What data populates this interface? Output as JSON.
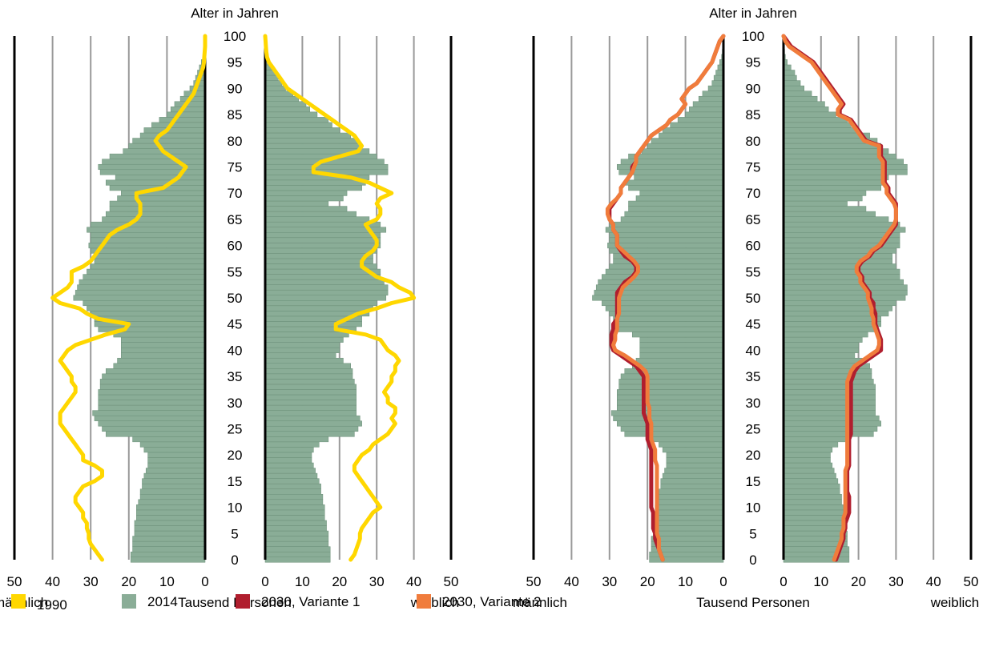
{
  "chart_data": [
    {
      "type": "bar",
      "subtype": "population-pyramid",
      "title": "Alter in Jahren",
      "xlabel": "Tausend Personen",
      "left_label": "männlich",
      "right_label": "weiblich",
      "xlim": [
        0,
        50
      ],
      "ylim": [
        0,
        100
      ],
      "x_ticks": [
        "50",
        "40",
        "30",
        "20",
        "10",
        "0"
      ],
      "x_ticks_right": [
        "0",
        "10",
        "20",
        "30",
        "40",
        "50"
      ],
      "y_ticks": [
        "0",
        "5",
        "10",
        "15",
        "20",
        "25",
        "30",
        "35",
        "40",
        "45",
        "50",
        "55",
        "60",
        "65",
        "70",
        "75",
        "80",
        "85",
        "90",
        "95",
        "100"
      ],
      "grid": true,
      "ages": [
        0,
        1,
        2,
        3,
        4,
        5,
        6,
        7,
        8,
        9,
        10,
        11,
        12,
        13,
        14,
        15,
        16,
        17,
        18,
        19,
        20,
        21,
        22,
        23,
        24,
        25,
        26,
        27,
        28,
        29,
        30,
        31,
        32,
        33,
        34,
        35,
        36,
        37,
        38,
        39,
        40,
        41,
        42,
        43,
        44,
        45,
        46,
        47,
        48,
        49,
        50,
        51,
        52,
        53,
        54,
        55,
        56,
        57,
        58,
        59,
        60,
        61,
        62,
        63,
        64,
        65,
        66,
        67,
        68,
        69,
        70,
        71,
        72,
        73,
        74,
        75,
        76,
        77,
        78,
        79,
        80,
        81,
        82,
        83,
        84,
        85,
        86,
        87,
        88,
        89,
        90,
        91,
        92,
        93,
        94,
        95,
        96,
        97,
        98,
        99,
        100
      ],
      "series": [
        {
          "name": "2014",
          "kind": "bars",
          "color": "#8aad97",
          "male": [
            19.5,
            19.5,
            19,
            19,
            19,
            18.5,
            18.5,
            18.5,
            18,
            18,
            18,
            17.5,
            17,
            17,
            16.5,
            16.5,
            16,
            15.5,
            15,
            15,
            15,
            16,
            17,
            19,
            26,
            27,
            28,
            29,
            29.5,
            28,
            28,
            28,
            28,
            27.5,
            27.5,
            27,
            26,
            24,
            23,
            22,
            22,
            22,
            22,
            24,
            28,
            29,
            29,
            30,
            31,
            32,
            34.5,
            34,
            33.5,
            33,
            32,
            31,
            30,
            29,
            29,
            30,
            30.5,
            30,
            30,
            31,
            30,
            27,
            26,
            25,
            25,
            23,
            22,
            25,
            26,
            23.5,
            27.5,
            28,
            27,
            25,
            21.5,
            20,
            19,
            17,
            16,
            14,
            12,
            10,
            9,
            8,
            6.5,
            5.5,
            4,
            3,
            2.5,
            2,
            1.5,
            1,
            0.5,
            0.3,
            0.2,
            0.1,
            0
          ],
          "female": [
            17.5,
            17.5,
            17.5,
            17,
            17,
            17,
            16.5,
            16.5,
            16,
            16,
            16,
            15.5,
            15.5,
            15,
            15,
            14.5,
            14,
            13.5,
            13,
            12.5,
            12.5,
            13,
            14.5,
            17,
            24,
            25,
            26,
            25.5,
            24.5,
            24.5,
            24.5,
            24.5,
            24.5,
            24.5,
            24,
            23.5,
            23.5,
            23,
            21,
            19,
            20,
            20,
            21,
            22.5,
            24.5,
            26,
            26,
            28,
            29,
            30,
            32.5,
            33,
            33,
            32,
            31,
            31,
            30,
            29,
            29,
            30,
            31,
            31,
            31,
            32.5,
            31,
            28,
            24.5,
            22,
            17,
            21,
            22,
            26,
            27,
            28,
            33,
            33,
            32,
            30,
            28,
            26,
            25,
            23,
            20,
            18,
            17,
            14,
            12,
            11,
            9,
            7.5,
            5.5,
            4.5,
            3.5,
            3,
            2,
            1,
            0.5,
            0.3,
            0.2,
            0.1,
            0
          ]
        },
        {
          "name": "1990",
          "kind": "line",
          "color": "#ffd700",
          "male": [
            27,
            28,
            29,
            30,
            30.5,
            30.5,
            31,
            31,
            32,
            32,
            33,
            34,
            34,
            33,
            32,
            29,
            27,
            27,
            29,
            32,
            32,
            33,
            34,
            35,
            36,
            37,
            38,
            38,
            38,
            37,
            36,
            35,
            34,
            34,
            35,
            35,
            36,
            37,
            38,
            37,
            36,
            34,
            30,
            26,
            21,
            20,
            28,
            31,
            33,
            38,
            40,
            38,
            36,
            35,
            35,
            35,
            32,
            30,
            29,
            28,
            27,
            26,
            25,
            23,
            20,
            18,
            17,
            17,
            17,
            18,
            18,
            11,
            9,
            7,
            6,
            5,
            7,
            9,
            11,
            12,
            13,
            12,
            10,
            9,
            8,
            7,
            6,
            5,
            4,
            3,
            2.5,
            2,
            1.5,
            1,
            0.5,
            0.3,
            0.2,
            0.1,
            0,
            0,
            0
          ],
          "female": [
            23,
            24,
            24.5,
            25,
            25.5,
            25.5,
            26,
            27,
            28,
            29,
            31,
            30,
            29,
            28,
            27,
            26,
            25,
            24,
            24,
            25,
            26,
            28,
            29,
            31,
            33,
            34,
            35,
            34,
            35,
            35,
            33,
            33,
            32,
            33,
            34,
            34,
            35,
            35,
            36,
            35,
            33,
            32,
            31,
            27,
            19,
            19,
            22,
            25,
            30,
            34,
            40,
            39,
            36,
            34,
            30,
            28,
            26,
            26,
            27,
            29,
            30,
            30,
            29,
            28,
            27,
            30,
            31,
            31,
            30,
            31,
            34,
            31,
            28,
            23,
            13,
            13,
            15,
            20,
            25,
            26,
            25,
            24,
            22,
            20,
            18,
            16,
            14,
            12,
            10,
            8,
            6,
            5,
            4,
            3,
            2,
            1,
            0.5,
            0.3,
            0.2,
            0.1,
            0
          ]
        }
      ]
    },
    {
      "type": "bar",
      "subtype": "population-pyramid",
      "title": "Alter in Jahren",
      "xlabel": "Tausend Personen",
      "left_label": "männlich",
      "right_label": "weiblich",
      "xlim": [
        0,
        50
      ],
      "ylim": [
        0,
        100
      ],
      "x_ticks": [
        "50",
        "40",
        "30",
        "20",
        "10",
        "0"
      ],
      "x_ticks_right": [
        "0",
        "10",
        "20",
        "30",
        "40",
        "50"
      ],
      "y_ticks": [
        "0",
        "5",
        "10",
        "15",
        "20",
        "25",
        "30",
        "35",
        "40",
        "45",
        "50",
        "55",
        "60",
        "65",
        "70",
        "75",
        "80",
        "85",
        "90",
        "95",
        "100"
      ],
      "grid": true,
      "series": [
        {
          "name": "2014",
          "kind": "bars",
          "color": "#8aad97",
          "same_as": "chart_data.0.series.0"
        },
        {
          "name": "2030, Variante 1",
          "kind": "line",
          "color": "#b01e2e",
          "male": [
            16,
            16.5,
            17,
            17.5,
            18,
            18,
            18.5,
            18.5,
            18.5,
            18.5,
            19,
            19,
            19,
            19,
            19,
            19,
            19,
            19,
            19,
            19,
            19,
            19,
            19.5,
            20,
            20,
            20,
            20,
            20.5,
            21,
            21,
            21,
            21,
            21,
            21,
            21,
            21,
            22,
            23,
            25,
            27,
            29,
            29.5,
            29.5,
            29.5,
            29,
            29,
            28,
            28,
            28,
            28,
            28,
            28,
            27,
            26,
            24,
            23,
            23,
            24,
            26,
            27,
            28,
            28,
            28,
            29,
            29,
            30,
            30,
            30,
            29,
            28,
            27,
            27,
            26,
            25,
            24,
            24,
            23,
            23,
            22,
            21,
            20,
            19,
            17,
            15,
            14,
            12,
            11,
            10,
            11,
            10,
            9,
            7,
            6,
            5,
            4,
            3,
            2.5,
            2,
            1.5,
            1,
            0
          ],
          "female": [
            14,
            14.5,
            15,
            15.5,
            16,
            16,
            16.5,
            16.5,
            17,
            17.5,
            17.5,
            17.5,
            17.5,
            17,
            17,
            17,
            17,
            17,
            17.5,
            17.5,
            17.5,
            17.5,
            17.5,
            17.5,
            18,
            18,
            18,
            18,
            18,
            18,
            18,
            18,
            18,
            18,
            18,
            18.5,
            19,
            20,
            22,
            24,
            26,
            26,
            26,
            25.5,
            25,
            24.5,
            24.5,
            24.5,
            24,
            24,
            23,
            23,
            22,
            21,
            21,
            20,
            20,
            21,
            23,
            24,
            26,
            27,
            28,
            29,
            30,
            30,
            30,
            30,
            30,
            29,
            28,
            28,
            27,
            27,
            27,
            27,
            27,
            26,
            26,
            26,
            22,
            21,
            20,
            19,
            18,
            15,
            15,
            16,
            15,
            14,
            13,
            12,
            11,
            10,
            9,
            8,
            6,
            4,
            2,
            1,
            0
          ]
        },
        {
          "name": "2030, Variante 2",
          "kind": "line",
          "color": "#f07c3c",
          "male": [
            16,
            16.5,
            17,
            17,
            17,
            17.5,
            17.5,
            17.5,
            17.5,
            17.5,
            17.5,
            17.5,
            17.5,
            17.5,
            17.5,
            17.5,
            17.5,
            17.5,
            17.5,
            18,
            18,
            18,
            18.5,
            19,
            19,
            19,
            19,
            19.5,
            19.5,
            19.5,
            20,
            20,
            20,
            20,
            20,
            20,
            20.5,
            22,
            24,
            26,
            28.5,
            29,
            28.5,
            28.5,
            28,
            28,
            28,
            27.5,
            27.5,
            27.5,
            27.5,
            27,
            26.5,
            25,
            23.5,
            22.5,
            22.5,
            23.5,
            25,
            26.5,
            28,
            28,
            28,
            29,
            29,
            30,
            30.5,
            30.5,
            29.5,
            28,
            27,
            27,
            26,
            25,
            24,
            23.5,
            23,
            23,
            22,
            21,
            20,
            19,
            17,
            15,
            14,
            12,
            11,
            10,
            11,
            10,
            9,
            7,
            6,
            5,
            4,
            3,
            2.5,
            2,
            1.5,
            1,
            0
          ],
          "female": [
            13.5,
            14,
            14.5,
            15,
            15.5,
            15.5,
            16,
            16,
            16,
            16.5,
            16.5,
            16.5,
            16.5,
            16.5,
            16.5,
            16.5,
            16.5,
            16.5,
            17,
            17,
            17,
            17,
            17,
            17,
            17,
            17,
            17,
            17,
            17,
            17,
            17,
            17,
            17,
            17,
            17,
            17.5,
            18,
            19,
            21,
            23,
            25,
            25.5,
            25.5,
            25,
            24.5,
            24,
            24,
            23.5,
            23.5,
            23,
            22.5,
            22.5,
            21.5,
            20.5,
            20.5,
            19.5,
            19.5,
            20.5,
            22.5,
            23.5,
            25.5,
            26.5,
            27.5,
            28.5,
            29.5,
            30,
            30,
            30,
            29.5,
            28.5,
            27.5,
            27.5,
            26.5,
            26.5,
            26.5,
            26.5,
            26.5,
            25.5,
            25.5,
            25.5,
            21.5,
            20.5,
            19.5,
            18.5,
            17.5,
            14.5,
            14.5,
            15.5,
            14.5,
            13.5,
            12.5,
            11.5,
            10.5,
            9.5,
            8.5,
            7.5,
            5.5,
            3.5,
            1.5,
            0.5,
            0
          ]
        }
      ]
    }
  ],
  "legend": {
    "items": [
      {
        "label": "1990",
        "color": "#ffd700"
      },
      {
        "label": "2014",
        "color": "#8aad97"
      },
      {
        "label": "2030, Variante 1",
        "color": "#b01e2e"
      },
      {
        "label": "2030, Variante 2",
        "color": "#f07c3c"
      }
    ]
  }
}
